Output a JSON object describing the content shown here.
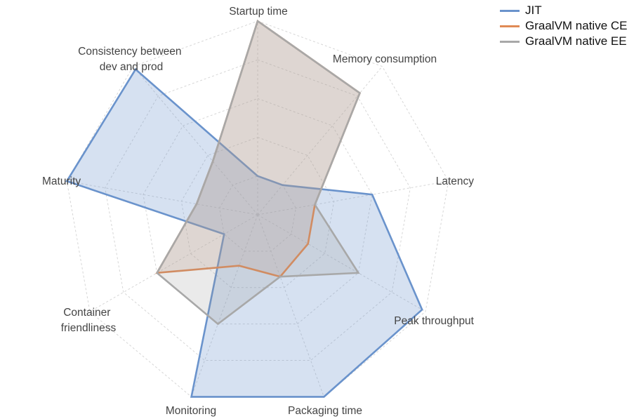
{
  "chart_data": {
    "type": "radar",
    "title": "",
    "axes": [
      "Startup time",
      "Memory consumption",
      "Latency",
      "Peak throughput",
      "Packaging time",
      "Monitoring",
      "Container friendliness",
      "Maturity",
      "Consistency between dev and prod"
    ],
    "range": [
      0,
      5
    ],
    "grid_levels": 5,
    "series": [
      {
        "name": "JIT",
        "color": "#6a93cc",
        "fill": "rgba(106,147,204,0.28)",
        "values": [
          1.0,
          1.0,
          3.0,
          4.9,
          5.0,
          5.0,
          1.0,
          5.0,
          4.9
        ]
      },
      {
        "name": "GraalVM native CE",
        "color": "#e08a55",
        "fill": "rgba(196,160,140,0.25)",
        "values": [
          5.0,
          4.1,
          1.5,
          1.5,
          1.7,
          1.4,
          3.0,
          1.6,
          1.8
        ]
      },
      {
        "name": "GraalVM native EE",
        "color": "#a8a8a8",
        "fill": "rgba(150,150,150,0.20)",
        "values": [
          5.0,
          4.1,
          1.5,
          3.0,
          1.7,
          3.0,
          3.0,
          1.6,
          1.8
        ]
      }
    ],
    "legend_position": "top-right"
  },
  "legend": [
    {
      "label": "JIT",
      "color": "#6a93cc"
    },
    {
      "label": "GraalVM native CE",
      "color": "#e08a55"
    },
    {
      "label": "GraalVM native EE",
      "color": "#a8a8a8"
    }
  ]
}
